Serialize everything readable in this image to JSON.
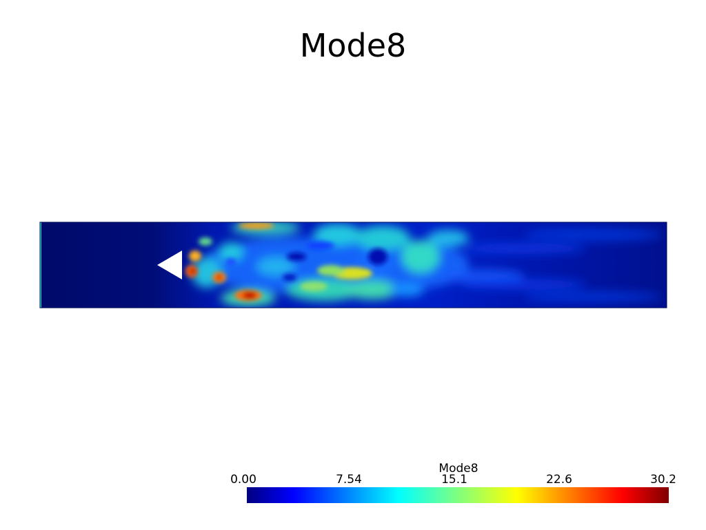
{
  "title": "Mode8",
  "colorbar": {
    "title": "Mode8",
    "ticks": [
      "0.00",
      "7.54",
      "15.1",
      "22.6",
      "30.2"
    ],
    "range": [
      0,
      30.2
    ],
    "colormap": "jet",
    "colors": [
      "#00007f",
      "#0000ff",
      "#00ffff",
      "#ffff00",
      "#ff0000",
      "#7f0000"
    ]
  },
  "chart_data": {
    "type": "heatmap",
    "title": "Mode8",
    "colorbar_label": "Mode8",
    "value_range": [
      0,
      30.2
    ],
    "colorbar_ticks": [
      0.0,
      7.54,
      15.1,
      22.6,
      30.2
    ],
    "colormap": "jet",
    "domain_shape": "channel with triangular bluff body",
    "background_value": 0.5
  }
}
